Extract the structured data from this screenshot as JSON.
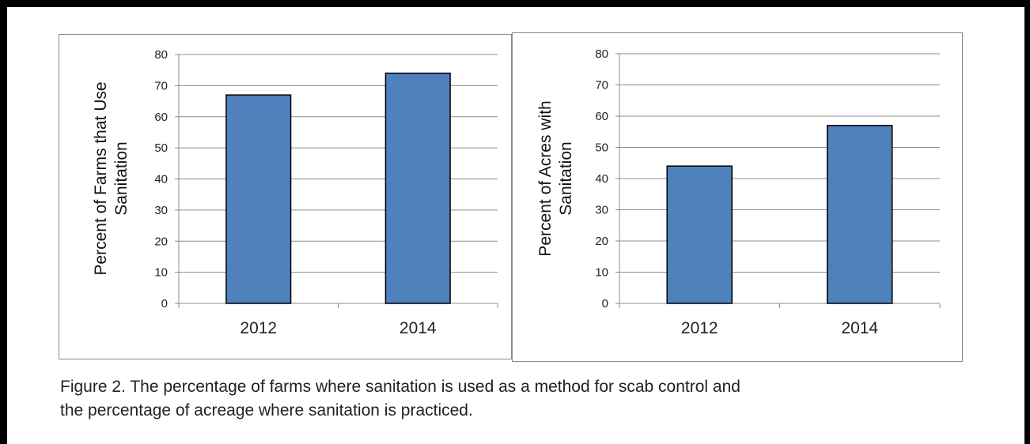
{
  "chart_data": [
    {
      "type": "bar",
      "categories": [
        "2012",
        "2014"
      ],
      "values": [
        67,
        74
      ],
      "ylabel": "Percent of Farms that Use Sanitation",
      "ylabel_lines": [
        "Percent of Farms that Use",
        "Sanitation"
      ],
      "ylim": [
        0,
        80
      ],
      "yticks": [
        "0",
        "10",
        "20",
        "30",
        "40",
        "50",
        "60",
        "70",
        "80"
      ],
      "grid": true,
      "bar_color": "#4F81BD"
    },
    {
      "type": "bar",
      "categories": [
        "2012",
        "2014"
      ],
      "values": [
        44,
        57
      ],
      "ylabel": "Percent of Acres with Sanitation",
      "ylabel_lines": [
        "Percent of Acres with",
        "Sanitation"
      ],
      "ylim": [
        0,
        80
      ],
      "yticks": [
        "0",
        "10",
        "20",
        "30",
        "40",
        "50",
        "60",
        "70",
        "80"
      ],
      "grid": true,
      "bar_color": "#4F81BD"
    }
  ],
  "caption": {
    "line1": "Figure 2.  The percentage of farms where sanitation is used as a method for scab control and",
    "line2": "the percentage of acreage where sanitation is practiced."
  }
}
